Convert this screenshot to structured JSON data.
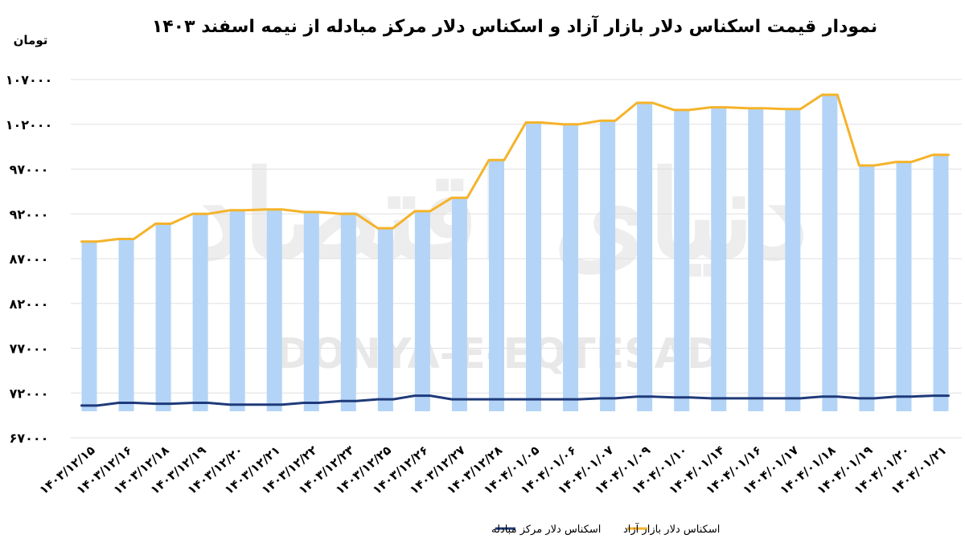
{
  "chart_data": {
    "type": "bar",
    "title": "نمودار قیمت اسکناس دلار بازار آزاد و اسکناس دلار مرکز مبادله از نیمه اسفند ۱۴۰۳",
    "ylabel": "تومان",
    "ylim": [
      67000,
      107000
    ],
    "yticks": [
      67000,
      72000,
      77000,
      82000,
      87000,
      92000,
      97000,
      102000,
      107000
    ],
    "ytick_labels": [
      "۶۷۰۰۰",
      "۷۲۰۰۰",
      "۷۷۰۰۰",
      "۸۲۰۰۰",
      "۸۷۰۰۰",
      "۹۲۰۰۰",
      "۹۷۰۰۰",
      "۱۰۲۰۰۰",
      "۱۰۷۰۰۰"
    ],
    "categories": [
      "۱۴۰۳/۱۲/۱۵",
      "۱۴۰۳/۱۲/۱۶",
      "۱۴۰۳/۱۲/۱۸",
      "۱۴۰۳/۱۲/۱۹",
      "۱۴۰۳/۱۲/۲۰",
      "۱۴۰۳/۱۲/۲۱",
      "۱۴۰۳/۱۲/۲۲",
      "۱۴۰۳/۱۲/۲۳",
      "۱۴۰۳/۱۲/۲۵",
      "۱۴۰۳/۱۲/۲۶",
      "۱۴۰۳/۱۲/۲۷",
      "۱۴۰۳/۱۲/۲۸",
      "۱۴۰۴/۰۱/۰۵",
      "۱۴۰۴/۰۱/۰۶",
      "۱۴۰۴/۰۱/۰۷",
      "۱۴۰۴/۰۱/۰۹",
      "۱۴۰۴/۰۱/۱۰",
      "۱۴۰۴/۰۱/۱۴",
      "۱۴۰۴/۰۱/۱۶",
      "۱۴۰۴/۰۱/۱۷",
      "۱۴۰۴/۰۱/۱۸",
      "۱۴۰۴/۰۱/۱۹",
      "۱۴۰۴/۰۱/۲۰",
      "۱۴۰۴/۰۱/۲۱"
    ],
    "series": [
      {
        "name": "اسکناس دلار بازار آزاد",
        "kind": "bar+line",
        "color": "#f5b32a",
        "bar_color": "#b3d4f7",
        "values": [
          88900,
          89200,
          90900,
          92000,
          92400,
          92500,
          92200,
          92000,
          90400,
          92300,
          93800,
          98000,
          102200,
          102000,
          102400,
          104400,
          103600,
          103900,
          103800,
          103700,
          105300,
          97400,
          97800,
          98600
        ]
      },
      {
        "name": "اسکناس دلار مرکز مبادله",
        "kind": "line",
        "color": "#1f3a7a",
        "values": [
          70600,
          70900,
          70800,
          70900,
          70700,
          70700,
          70900,
          71100,
          71300,
          71700,
          71300,
          71300,
          71300,
          71300,
          71400,
          71600,
          71500,
          71400,
          71400,
          71400,
          71600,
          71400,
          71600,
          71700
        ]
      }
    ],
    "grid": true,
    "legend_position": "bottom"
  },
  "watermark": {
    "latin": "DONYA-E-EQTESAD",
    "persian": "دنیای اقتصاد"
  },
  "colors": {
    "bar": "#b3d4f7",
    "free_market_line": "#f5b32a",
    "exchange_center_line": "#1f3a7a",
    "grid": "#e0e0e0"
  }
}
